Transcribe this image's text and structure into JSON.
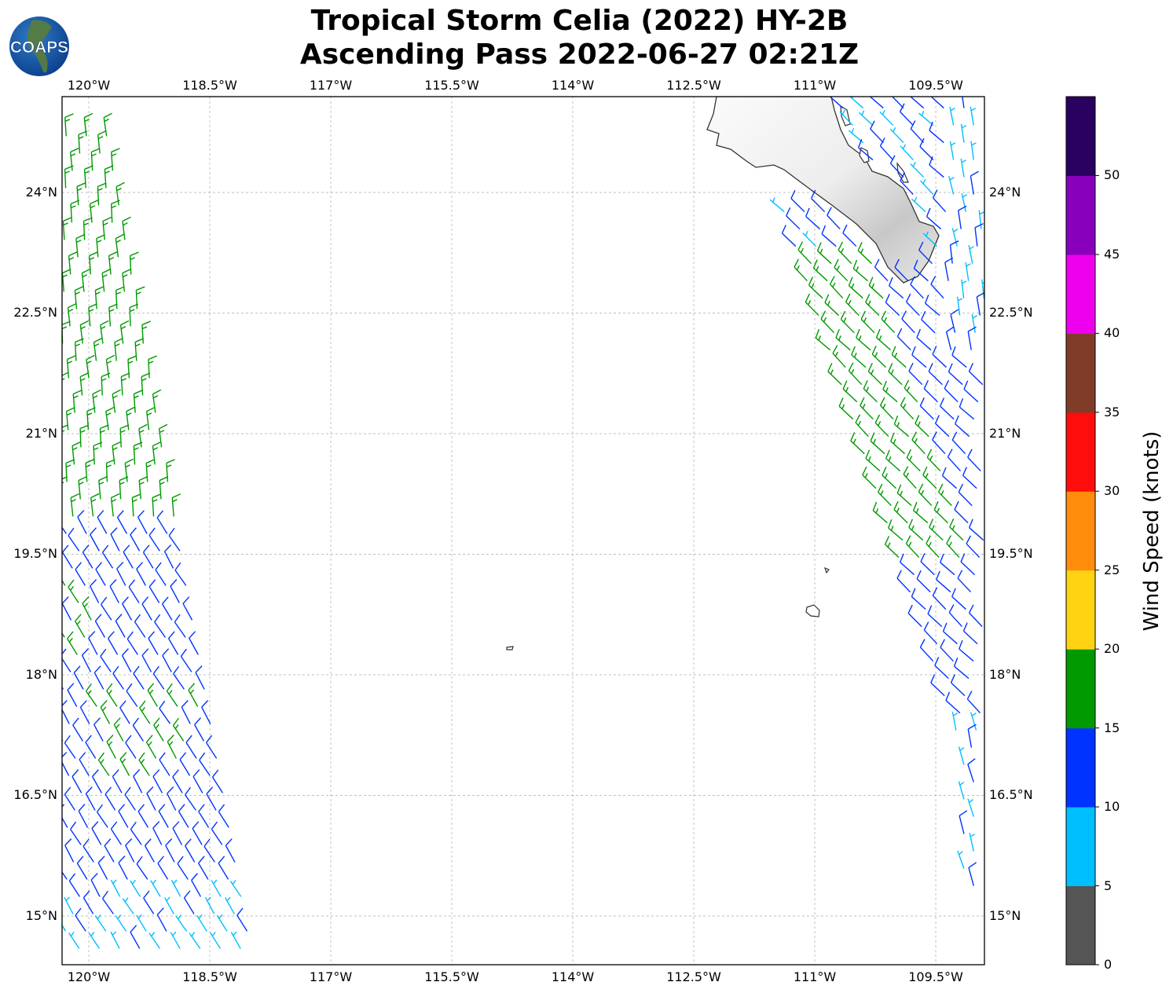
{
  "title": {
    "line1": "Tropical Storm Celia (2022) HY-2B",
    "line2": "Ascending Pass 2022-06-27 02:21Z"
  },
  "logo": {
    "text": "COAPS",
    "icon": "globe-logo-icon"
  },
  "map": {
    "lon_range": [
      -120.33,
      -108.9
    ],
    "lat_range": [
      14.39,
      25.19
    ],
    "lon_ticks": [
      {
        "value": -120,
        "label": "120°W"
      },
      {
        "value": -118.5,
        "label": "118.5°W"
      },
      {
        "value": -117,
        "label": "117°W"
      },
      {
        "value": -115.5,
        "label": "115.5°W"
      },
      {
        "value": -114,
        "label": "114°W"
      },
      {
        "value": -112.5,
        "label": "112.5°W"
      },
      {
        "value": -111,
        "label": "111°W"
      },
      {
        "value": -109.5,
        "label": "109.5°W"
      }
    ],
    "lat_ticks": [
      {
        "value": 24,
        "label": "24°N"
      },
      {
        "value": 22.5,
        "label": "22.5°N"
      },
      {
        "value": 21,
        "label": "21°N"
      },
      {
        "value": 19.5,
        "label": "19.5°N"
      },
      {
        "value": 18,
        "label": "18°N"
      },
      {
        "value": 16.5,
        "label": "16.5°N"
      },
      {
        "value": 15,
        "label": "15°N"
      }
    ]
  },
  "colorbar": {
    "label": "Wind Speed (knots)",
    "ticks": [
      "0",
      "5",
      "10",
      "15",
      "20",
      "25",
      "30",
      "35",
      "40",
      "45",
      "50"
    ],
    "colors": [
      "#555555",
      "#00bfff",
      "#0033ff",
      "#009900",
      "#ffd311",
      "#ff8c0a",
      "#ff0d0d",
      "#803c28",
      "#ee00ee",
      "#8800bb",
      "#2a0060"
    ]
  }
}
